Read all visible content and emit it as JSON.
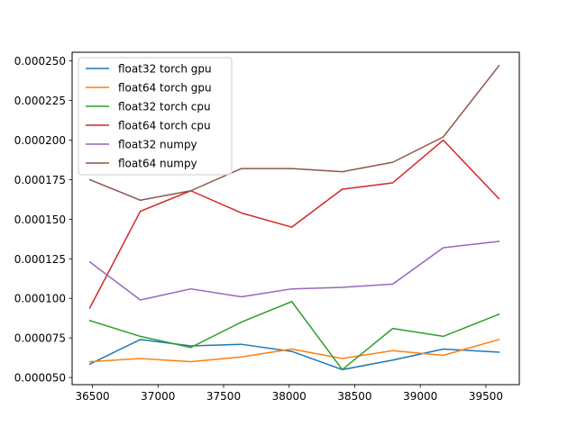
{
  "chart_data": {
    "type": "line",
    "title": "",
    "xlabel": "",
    "ylabel": "",
    "xlim": [
      36345,
      39755
    ],
    "ylim": [
      4.55e-05,
      0.0002555
    ],
    "x": [
      36480,
      36865,
      37250,
      37635,
      38020,
      38405,
      38790,
      39175,
      39600
    ],
    "xticks": [
      36500,
      37000,
      37500,
      38000,
      38500,
      39000,
      39500
    ],
    "xtick_labels": [
      "36500",
      "37000",
      "37500",
      "38000",
      "38500",
      "39000",
      "39500"
    ],
    "yticks": [
      5e-05,
      7.5e-05,
      0.0001,
      0.000125,
      0.00015,
      0.000175,
      0.0002,
      0.000225,
      0.00025
    ],
    "ytick_labels": [
      "0.000050",
      "0.000075",
      "0.000100",
      "0.000125",
      "0.000150",
      "0.000175",
      "0.000200",
      "0.000225",
      "0.000250"
    ],
    "grid": false,
    "legend_position": "top-left",
    "series": [
      {
        "name": "float32 torch gpu",
        "color": "#1f77b4",
        "values": [
          5.85e-05,
          7.4e-05,
          7e-05,
          7.1e-05,
          6.65e-05,
          5.5e-05,
          6.1e-05,
          6.8e-05,
          6.6e-05
        ]
      },
      {
        "name": "float64 torch gpu",
        "color": "#ff7f0e",
        "values": [
          6e-05,
          6.2e-05,
          6e-05,
          6.3e-05,
          6.8e-05,
          6.2e-05,
          6.7e-05,
          6.4e-05,
          7.4e-05
        ]
      },
      {
        "name": "float32 torch cpu",
        "color": "#2ca02c",
        "values": [
          8.6e-05,
          7.6e-05,
          6.9e-05,
          8.5e-05,
          9.8e-05,
          5.5e-05,
          8.1e-05,
          7.6e-05,
          9e-05
        ]
      },
      {
        "name": "float64 torch cpu",
        "color": "#d62728",
        "values": [
          9.4e-05,
          0.000155,
          0.000168,
          0.000154,
          0.000145,
          0.000169,
          0.000173,
          0.0002,
          0.000163
        ]
      },
      {
        "name": "float32 numpy",
        "color": "#9467bd",
        "values": [
          0.000123,
          9.9e-05,
          0.000106,
          0.000101,
          0.000106,
          0.000107,
          0.000109,
          0.000132,
          0.000136
        ]
      },
      {
        "name": "float64 numpy",
        "color": "#8c564b",
        "values": [
          0.000175,
          0.000162,
          0.000168,
          0.000182,
          0.000182,
          0.00018,
          0.000186,
          0.000202,
          0.000247
        ]
      }
    ]
  }
}
